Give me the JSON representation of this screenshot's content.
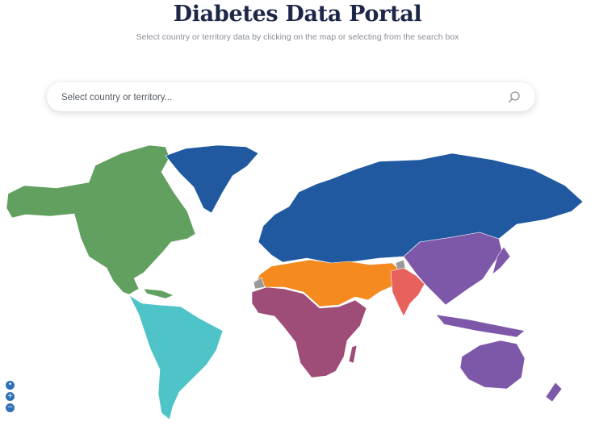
{
  "page": {
    "title": "Diabetes Data Portal",
    "subtitle": "Select country or territory data by clicking on the map or selecting from the search box"
  },
  "search": {
    "placeholder": "Select country or territory...",
    "icon": "search-icon"
  },
  "map": {
    "regions": [
      {
        "id": "north-america-caribbean",
        "color": "#62a05f"
      },
      {
        "id": "south-central-america",
        "color": "#4ec4c8"
      },
      {
        "id": "europe",
        "color": "#2059a0"
      },
      {
        "id": "middle-east-north-africa",
        "color": "#f58a1f"
      },
      {
        "id": "africa",
        "color": "#9e4d78"
      },
      {
        "id": "south-east-asia",
        "color": "#e8625d"
      },
      {
        "id": "western-pacific",
        "color": "#7d58a8"
      },
      {
        "id": "no-data",
        "color": "#9a9a9a"
      }
    ]
  },
  "zoom": {
    "reset_icon": "reset-icon",
    "zoom_in_label": "+",
    "zoom_out_label": "−"
  }
}
